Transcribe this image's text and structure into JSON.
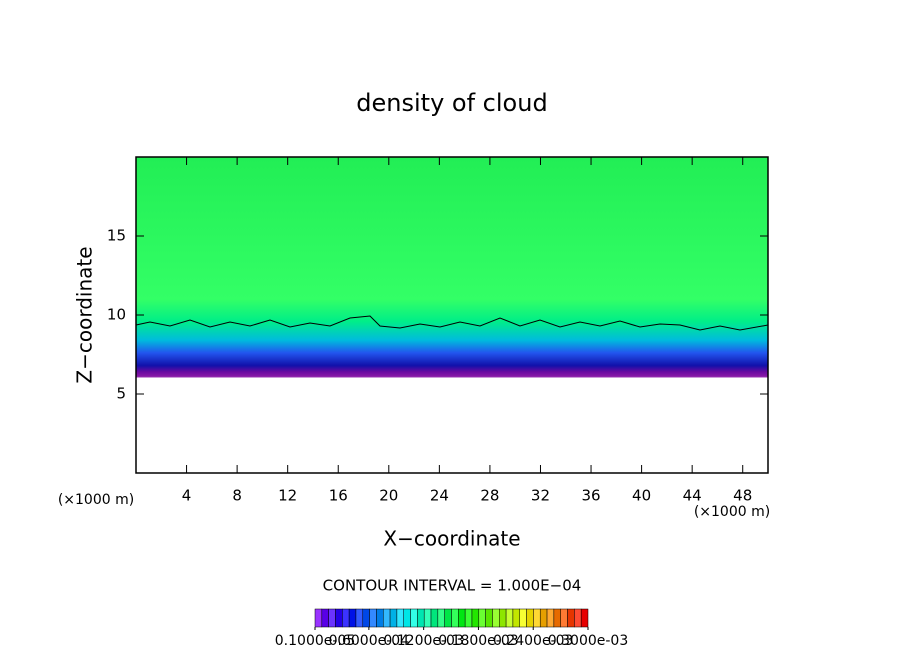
{
  "chart_data": {
    "type": "contour",
    "title": "density of cloud",
    "x_label": "X−coordinate",
    "y_label": "Z−coordinate",
    "x_unit": "(×1000 m)",
    "y_unit": "(×1000 m)",
    "xlim": [
      0,
      50
    ],
    "ylim": [
      0,
      20
    ],
    "xticks": [
      4,
      8,
      12,
      16,
      20,
      24,
      28,
      32,
      36,
      40,
      44,
      48
    ],
    "yticks": [
      5,
      10,
      15
    ],
    "contour_interval": "CONTOUR INTERVAL = 1.000E−04",
    "colorbar": {
      "lim": [
        1e-06,
        0.0003
      ],
      "ticks": [
        {
          "value": 1e-06,
          "label": "0.1000e-05"
        },
        {
          "value": 6e-05,
          "label": "0.6000e-04"
        },
        {
          "value": 0.00012,
          "label": "0.1200e-03"
        },
        {
          "value": 0.00018,
          "label": "0.1800e-03"
        },
        {
          "value": 0.00024,
          "label": "0.2400e-03"
        },
        {
          "value": 0.0003,
          "label": "0.3000e-03"
        }
      ]
    }
  }
}
